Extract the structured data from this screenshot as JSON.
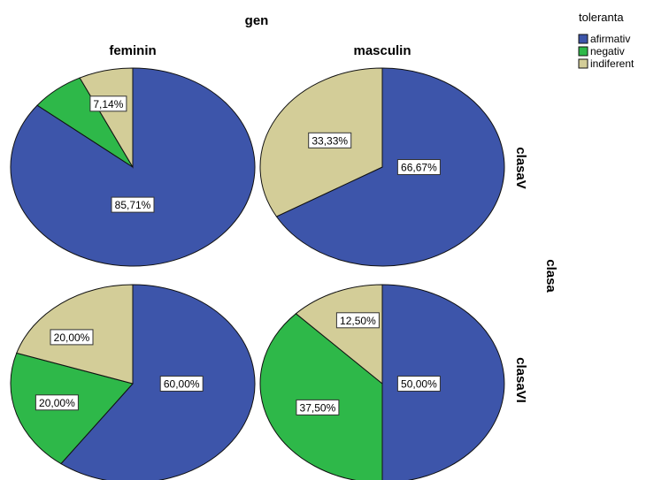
{
  "chart_data": {
    "type": "pie",
    "title": "gen",
    "column_facet_values": [
      "feminin",
      "masculin"
    ],
    "row_facet_title": "clasa",
    "row_facet_values": [
      "clasaV",
      "clasaVI"
    ],
    "legend": {
      "title": "toleranta",
      "placement": "top-right",
      "entries": [
        "afirmativ",
        "negativ",
        "indiferent"
      ]
    },
    "colors": {
      "afirmativ": "#3d55aa",
      "negativ": "#2eb849",
      "indiferent": "#d3cd98"
    },
    "panels": [
      {
        "row": "clasaV",
        "column": "feminin",
        "slices": [
          {
            "category": "afirmativ",
            "value": 85.71,
            "label": "85,71%"
          },
          {
            "category": "negativ",
            "value": 7.14,
            "label": ""
          },
          {
            "category": "indiferent",
            "value": 7.14,
            "label": "7,14%"
          }
        ]
      },
      {
        "row": "clasaV",
        "column": "masculin",
        "slices": [
          {
            "category": "afirmativ",
            "value": 66.67,
            "label": "66,67%"
          },
          {
            "category": "indiferent",
            "value": 33.33,
            "label": "33,33%"
          }
        ]
      },
      {
        "row": "clasaVI",
        "column": "feminin",
        "slices": [
          {
            "category": "afirmativ",
            "value": 60.0,
            "label": "60,00%"
          },
          {
            "category": "negativ",
            "value": 20.0,
            "label": "20,00%"
          },
          {
            "category": "indiferent",
            "value": 20.0,
            "label": "20,00%"
          }
        ]
      },
      {
        "row": "clasaVI",
        "column": "masculin",
        "slices": [
          {
            "category": "afirmativ",
            "value": 50.0,
            "label": "50,00%"
          },
          {
            "category": "negativ",
            "value": 37.5,
            "label": "37,50%"
          },
          {
            "category": "indiferent",
            "value": 12.5,
            "label": "12,50%"
          }
        ]
      }
    ]
  }
}
